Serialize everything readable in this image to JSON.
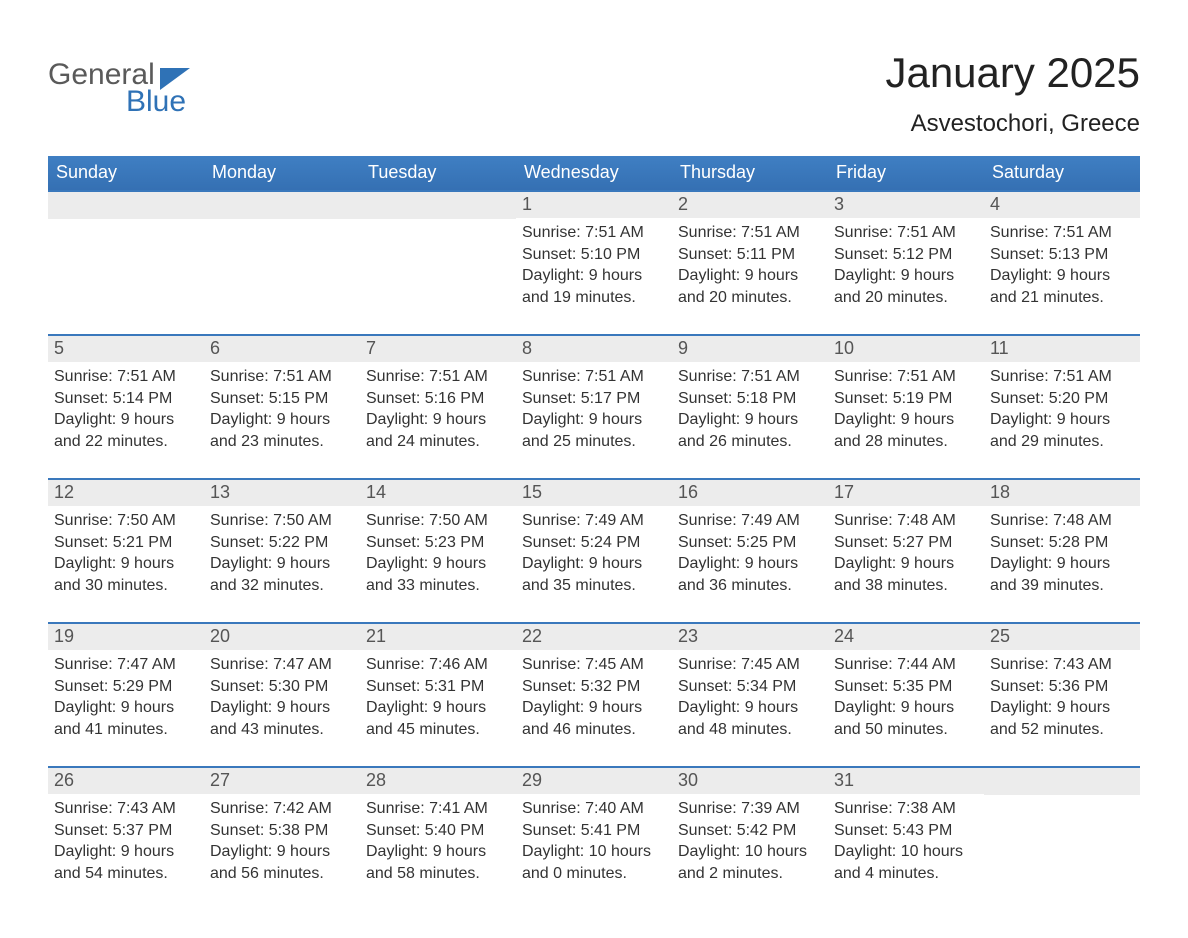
{
  "logo": {
    "line1": "General",
    "line2": "Blue",
    "flag_color": "#2f72b6"
  },
  "title": "January 2025",
  "location": "Asvestochori, Greece",
  "colors": {
    "header_bg": "#3a78bc",
    "header_text": "#ffffff",
    "row_divider": "#3a78bc",
    "daynum_bg": "#ececec",
    "daynum_text": "#555555",
    "body_text": "#333333",
    "page_bg": "#ffffff",
    "logo_gray": "#5a5a5a",
    "logo_blue": "#2f72b6"
  },
  "days_of_week": [
    "Sunday",
    "Monday",
    "Tuesday",
    "Wednesday",
    "Thursday",
    "Friday",
    "Saturday"
  ],
  "labels": {
    "sunrise": "Sunrise: ",
    "sunset": "Sunset: ",
    "daylight": "Daylight: "
  },
  "weeks": [
    [
      null,
      null,
      null,
      {
        "n": "1",
        "sunrise": "7:51 AM",
        "sunset": "5:10 PM",
        "daylight": "9 hours and 19 minutes."
      },
      {
        "n": "2",
        "sunrise": "7:51 AM",
        "sunset": "5:11 PM",
        "daylight": "9 hours and 20 minutes."
      },
      {
        "n": "3",
        "sunrise": "7:51 AM",
        "sunset": "5:12 PM",
        "daylight": "9 hours and 20 minutes."
      },
      {
        "n": "4",
        "sunrise": "7:51 AM",
        "sunset": "5:13 PM",
        "daylight": "9 hours and 21 minutes."
      }
    ],
    [
      {
        "n": "5",
        "sunrise": "7:51 AM",
        "sunset": "5:14 PM",
        "daylight": "9 hours and 22 minutes."
      },
      {
        "n": "6",
        "sunrise": "7:51 AM",
        "sunset": "5:15 PM",
        "daylight": "9 hours and 23 minutes."
      },
      {
        "n": "7",
        "sunrise": "7:51 AM",
        "sunset": "5:16 PM",
        "daylight": "9 hours and 24 minutes."
      },
      {
        "n": "8",
        "sunrise": "7:51 AM",
        "sunset": "5:17 PM",
        "daylight": "9 hours and 25 minutes."
      },
      {
        "n": "9",
        "sunrise": "7:51 AM",
        "sunset": "5:18 PM",
        "daylight": "9 hours and 26 minutes."
      },
      {
        "n": "10",
        "sunrise": "7:51 AM",
        "sunset": "5:19 PM",
        "daylight": "9 hours and 28 minutes."
      },
      {
        "n": "11",
        "sunrise": "7:51 AM",
        "sunset": "5:20 PM",
        "daylight": "9 hours and 29 minutes."
      }
    ],
    [
      {
        "n": "12",
        "sunrise": "7:50 AM",
        "sunset": "5:21 PM",
        "daylight": "9 hours and 30 minutes."
      },
      {
        "n": "13",
        "sunrise": "7:50 AM",
        "sunset": "5:22 PM",
        "daylight": "9 hours and 32 minutes."
      },
      {
        "n": "14",
        "sunrise": "7:50 AM",
        "sunset": "5:23 PM",
        "daylight": "9 hours and 33 minutes."
      },
      {
        "n": "15",
        "sunrise": "7:49 AM",
        "sunset": "5:24 PM",
        "daylight": "9 hours and 35 minutes."
      },
      {
        "n": "16",
        "sunrise": "7:49 AM",
        "sunset": "5:25 PM",
        "daylight": "9 hours and 36 minutes."
      },
      {
        "n": "17",
        "sunrise": "7:48 AM",
        "sunset": "5:27 PM",
        "daylight": "9 hours and 38 minutes."
      },
      {
        "n": "18",
        "sunrise": "7:48 AM",
        "sunset": "5:28 PM",
        "daylight": "9 hours and 39 minutes."
      }
    ],
    [
      {
        "n": "19",
        "sunrise": "7:47 AM",
        "sunset": "5:29 PM",
        "daylight": "9 hours and 41 minutes."
      },
      {
        "n": "20",
        "sunrise": "7:47 AM",
        "sunset": "5:30 PM",
        "daylight": "9 hours and 43 minutes."
      },
      {
        "n": "21",
        "sunrise": "7:46 AM",
        "sunset": "5:31 PM",
        "daylight": "9 hours and 45 minutes."
      },
      {
        "n": "22",
        "sunrise": "7:45 AM",
        "sunset": "5:32 PM",
        "daylight": "9 hours and 46 minutes."
      },
      {
        "n": "23",
        "sunrise": "7:45 AM",
        "sunset": "5:34 PM",
        "daylight": "9 hours and 48 minutes."
      },
      {
        "n": "24",
        "sunrise": "7:44 AM",
        "sunset": "5:35 PM",
        "daylight": "9 hours and 50 minutes."
      },
      {
        "n": "25",
        "sunrise": "7:43 AM",
        "sunset": "5:36 PM",
        "daylight": "9 hours and 52 minutes."
      }
    ],
    [
      {
        "n": "26",
        "sunrise": "7:43 AM",
        "sunset": "5:37 PM",
        "daylight": "9 hours and 54 minutes."
      },
      {
        "n": "27",
        "sunrise": "7:42 AM",
        "sunset": "5:38 PM",
        "daylight": "9 hours and 56 minutes."
      },
      {
        "n": "28",
        "sunrise": "7:41 AM",
        "sunset": "5:40 PM",
        "daylight": "9 hours and 58 minutes."
      },
      {
        "n": "29",
        "sunrise": "7:40 AM",
        "sunset": "5:41 PM",
        "daylight": "10 hours and 0 minutes."
      },
      {
        "n": "30",
        "sunrise": "7:39 AM",
        "sunset": "5:42 PM",
        "daylight": "10 hours and 2 minutes."
      },
      {
        "n": "31",
        "sunrise": "7:38 AM",
        "sunset": "5:43 PM",
        "daylight": "10 hours and 4 minutes."
      },
      null
    ]
  ]
}
